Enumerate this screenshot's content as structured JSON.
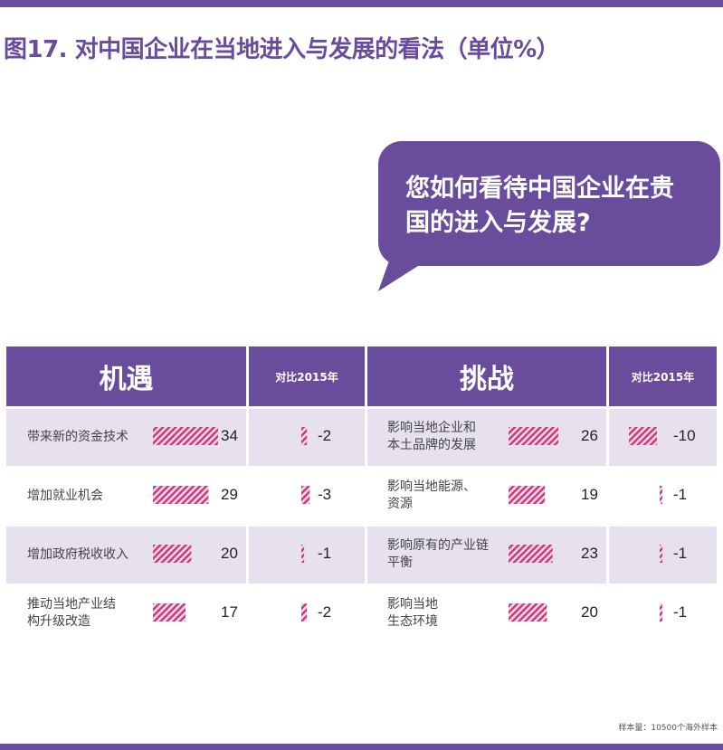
{
  "title": "图17. 对中国企业在当地进入与发展的看法（单位%）",
  "question": [
    "您如何看待中国企业在贵",
    "国的进入与发展?"
  ],
  "headers": {
    "opportunity": "机遇",
    "challenge": "挑战",
    "compare": "对比2015年"
  },
  "colors": {
    "purple": "#6a4c9c",
    "row_light": "#e7e0ee",
    "bar_pink": "#c8367c"
  },
  "chart_data": [
    {
      "type": "bar",
      "group": "机遇",
      "categories": [
        [
          "带来新的资金技术"
        ],
        [
          "增加就业机会"
        ],
        [
          "增加政府税收收入"
        ],
        [
          "推动当地产业结",
          "构升级改造"
        ]
      ],
      "values": [
        34,
        29,
        20,
        17
      ],
      "change_vs_2015": [
        -2,
        -3,
        -1,
        -2
      ]
    },
    {
      "type": "bar",
      "group": "挑战",
      "categories": [
        [
          "影响当地企业和",
          "本土品牌的发展"
        ],
        [
          "影响当地能源、",
          "资源"
        ],
        [
          "影响原有的产业链",
          "平衡"
        ],
        [
          "影响当地",
          "生态环境"
        ]
      ],
      "values": [
        26,
        19,
        23,
        20
      ],
      "change_vs_2015": [
        -10,
        -1,
        -1,
        -1
      ]
    }
  ],
  "footnote": "样本量：10500个海外样本"
}
